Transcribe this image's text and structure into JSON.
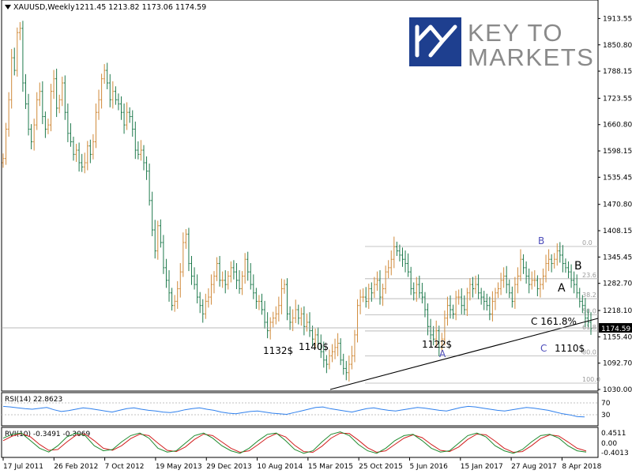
{
  "header": {
    "title": "XAUUSD,Weekly",
    "ohlc": "1211.45 1213.82 1173.06 1174.59"
  },
  "logo": {
    "line1": "KEY TO",
    "line2": "MARKETS"
  },
  "colors": {
    "bull": "#d08a3a",
    "bear": "#1f7a4d",
    "grid": "#c0c0c0",
    "fib": "#b0b0b0",
    "price_box_bg": "#000000",
    "price_box_text": "#ffffff",
    "rsi": "#2f80ed",
    "rvi_main": "#1e8a2e",
    "rvi_signal": "#d21f1f",
    "wave_label_blue": "#4d4dbb",
    "logo_blue": "#1e3f8f"
  },
  "chart_data": {
    "type": "ohlc",
    "symbol": "XAUUSD",
    "timeframe": "Weekly",
    "last_price": "1174.59",
    "ylim": [
      1030.0,
      1935.0
    ],
    "y_ticks": [
      "1913.55",
      "1850.80",
      "1788.15",
      "1723.55",
      "1660.80",
      "1598.15",
      "1535.45",
      "1470.80",
      "1408.15",
      "1345.45",
      "1282.70",
      "1218.10",
      "1155.40",
      "1092.70",
      "1030.00"
    ],
    "x_ticks": [
      "17 Jul 2011",
      "26 Feb 2012",
      "7 Oct 2012",
      "19 May 2013",
      "29 Dec 2013",
      "10 Aug 2014",
      "15 Mar 2015",
      "25 Oct 2015",
      "5 Jun 2016",
      "15 Jan 2017",
      "27 Aug 2017",
      "8 Apr 2018"
    ],
    "series": [
      {
        "values": [
          1580,
          1650,
          1720,
          1820,
          1790,
          1880,
          1890,
          1760,
          1710,
          1650,
          1620,
          1660,
          1720,
          1740,
          1680,
          1650,
          1660,
          1740,
          1770,
          1700,
          1720,
          1760,
          1690,
          1640,
          1620,
          1590,
          1600,
          1570,
          1560,
          1570,
          1610,
          1590,
          1620,
          1690,
          1720,
          1770,
          1790,
          1760,
          1720,
          1740,
          1720,
          1710,
          1690,
          1660,
          1690,
          1680,
          1650,
          1600,
          1590,
          1600,
          1570,
          1550,
          1480,
          1410,
          1360,
          1420,
          1380,
          1320,
          1290,
          1260,
          1230,
          1240,
          1270,
          1310,
          1380,
          1400,
          1330,
          1300,
          1280,
          1250,
          1230,
          1210,
          1240,
          1250,
          1280,
          1300,
          1330,
          1290,
          1290,
          1280,
          1300,
          1320,
          1310,
          1290,
          1270,
          1300,
          1340,
          1310,
          1280,
          1260,
          1240,
          1240,
          1220,
          1190,
          1170,
          1190,
          1200,
          1210,
          1230,
          1270,
          1280,
          1210,
          1190,
          1200,
          1220,
          1200,
          1210,
          1180,
          1190,
          1170,
          1150,
          1160,
          1140,
          1120,
          1100,
          1090,
          1110,
          1120,
          1130,
          1140,
          1100,
          1080,
          1070,
          1090,
          1110,
          1160,
          1230,
          1250,
          1250,
          1240,
          1270,
          1260,
          1280,
          1290,
          1250,
          1270,
          1310,
          1320,
          1340,
          1370,
          1360,
          1350,
          1340,
          1330,
          1310,
          1270,
          1260,
          1280,
          1260,
          1250,
          1220,
          1180,
          1160,
          1150,
          1170,
          1130,
          1150,
          1200,
          1230,
          1220,
          1210,
          1250,
          1250,
          1230,
          1220,
          1260,
          1280,
          1270,
          1280,
          1260,
          1250,
          1240,
          1230,
          1210,
          1240,
          1260,
          1270,
          1290,
          1300,
          1280,
          1260,
          1240,
          1280,
          1300,
          1340,
          1320,
          1300,
          1280,
          1290,
          1290,
          1270,
          1280,
          1300,
          1330,
          1340,
          1330,
          1340,
          1360,
          1350,
          1330,
          1320,
          1310,
          1290,
          1280,
          1260,
          1240,
          1230,
          1200,
          1190,
          1175
        ]
      }
    ],
    "fib_levels": [
      "0.0",
      "23.6",
      "38.2",
      "50.0",
      "61.8",
      "80.0",
      "100.0"
    ],
    "annotations": {
      "wave_A_top": "A",
      "wave_B_low": "B",
      "label_A_blue": "A",
      "label_B_blue": "B",
      "label_C_blue": "C",
      "label_C_fib": "C  161.8%",
      "price_1132": "1132$",
      "price_1140": "1140$",
      "price_1122": "1122$",
      "price_1110": "1110$"
    },
    "rsi": {
      "label": "RSI(14) 22.8623",
      "ticks": [
        "70",
        "30"
      ],
      "values": [
        60,
        58,
        55,
        52,
        50,
        53,
        56,
        48,
        42,
        45,
        50,
        55,
        52,
        48,
        44,
        40,
        46,
        52,
        55,
        50,
        46,
        44,
        40,
        38,
        42,
        48,
        52,
        55,
        50,
        46,
        40,
        36,
        34,
        38,
        42,
        44,
        40,
        36,
        34,
        32,
        38,
        44,
        50,
        56,
        58,
        52,
        48,
        44,
        40,
        46,
        52,
        55,
        50,
        46,
        44,
        48,
        52,
        56,
        54,
        50,
        46,
        44,
        50,
        56,
        60,
        58,
        54,
        50,
        46,
        44,
        48,
        52,
        56,
        54,
        50,
        46,
        40,
        34,
        30,
        24,
        23
      ]
    },
    "rvi": {
      "label": "RVI(10) -0.3491 -0.3069",
      "ticks": [
        "0.4511",
        "0.00",
        "-0.4013"
      ],
      "main": [
        0.2,
        0.35,
        0.4,
        0.1,
        -0.2,
        -0.35,
        -0.1,
        0.25,
        0.4,
        0.3,
        -0.1,
        -0.3,
        -0.25,
        0.05,
        0.3,
        0.4,
        0.2,
        -0.2,
        -0.35,
        -0.3,
        0.0,
        0.3,
        0.4,
        0.2,
        -0.1,
        -0.3,
        -0.4,
        -0.2,
        0.1,
        0.35,
        0.4,
        0.1,
        -0.25,
        -0.4,
        -0.3,
        0.05,
        0.35,
        0.45,
        0.3,
        -0.05,
        -0.3,
        -0.4,
        -0.2,
        0.1,
        0.3,
        0.35,
        0.1,
        -0.2,
        -0.35,
        -0.3,
        0.0,
        0.3,
        0.4,
        0.25,
        -0.1,
        -0.3,
        -0.4,
        -0.25,
        0.05,
        0.3,
        0.35,
        0.2,
        -0.1,
        -0.3,
        -0.35
      ],
      "signal": [
        0.1,
        0.28,
        0.38,
        0.25,
        -0.05,
        -0.28,
        -0.25,
        0.05,
        0.32,
        0.36,
        0.1,
        -0.2,
        -0.28,
        -0.1,
        0.18,
        0.36,
        0.3,
        0.0,
        -0.28,
        -0.33,
        -0.15,
        0.15,
        0.36,
        0.3,
        0.05,
        -0.2,
        -0.36,
        -0.3,
        -0.05,
        0.22,
        0.38,
        0.25,
        -0.08,
        -0.33,
        -0.36,
        -0.12,
        0.2,
        0.4,
        0.38,
        0.12,
        -0.18,
        -0.36,
        -0.3,
        -0.05,
        0.2,
        0.33,
        0.22,
        -0.05,
        -0.28,
        -0.33,
        -0.15,
        0.15,
        0.36,
        0.33,
        0.08,
        -0.2,
        -0.36,
        -0.33,
        -0.1,
        0.18,
        0.33,
        0.28,
        0.05,
        -0.2,
        -0.31
      ]
    }
  }
}
